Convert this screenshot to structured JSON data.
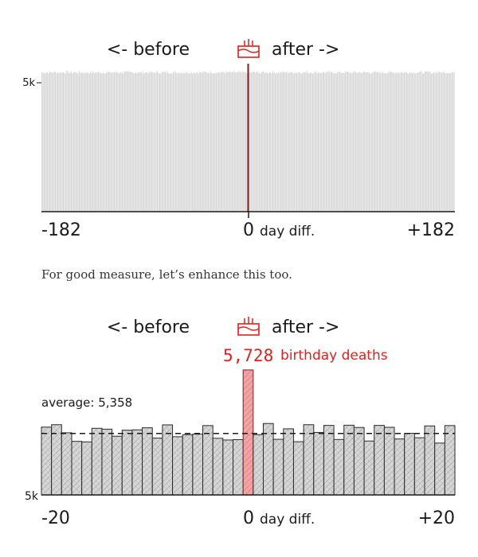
{
  "chart1": {
    "title": {
      "left": "<- before",
      "right": "after ->"
    },
    "tick_labels": {
      "start": "-182",
      "center": "0",
      "center_suffix": "day diff.",
      "end": "+182",
      "y": "5k"
    }
  },
  "prose": "For good measure, let’s enhance this too.",
  "chart2": {
    "title": {
      "left": "<- before",
      "right": "after ->"
    },
    "annotation_value": "5,728",
    "annotation_text": "birthday deaths",
    "average_label": "average: 5,358",
    "tick_labels": {
      "start": "-20",
      "center": "0",
      "center_suffix": "day diff.",
      "end": "+20",
      "y": "5k"
    }
  },
  "colors": {
    "bar": "#d6d6d6",
    "highlight": "#f2a3a3",
    "highlight_line": "#8b1a1a",
    "annotation": "#e0201d",
    "axis": "#1a1a1a"
  },
  "chart_data": [
    {
      "type": "bar",
      "x_range": [
        -182,
        182
      ],
      "ylim": [
        0,
        5100
      ],
      "values_note_free": true,
      "highlight_x": 0,
      "values": []
    },
    {
      "type": "bar",
      "x": [
        -20,
        -19,
        -18,
        -17,
        -16,
        -15,
        -14,
        -13,
        -12,
        -11,
        -10,
        -9,
        -8,
        -7,
        -6,
        -5,
        -4,
        -3,
        -2,
        -1,
        0,
        1,
        2,
        3,
        4,
        5,
        6,
        7,
        8,
        9,
        10,
        11,
        12,
        13,
        14,
        15,
        16,
        17,
        18,
        19,
        20
      ],
      "values": [
        5395,
        5409,
        5362,
        5312,
        5309,
        5388,
        5383,
        5342,
        5377,
        5379,
        5391,
        5331,
        5408,
        5339,
        5351,
        5354,
        5404,
        5330,
        5320,
        5322,
        5728,
        5351,
        5416,
        5324,
        5385,
        5310,
        5409,
        5364,
        5405,
        5323,
        5406,
        5393,
        5314,
        5405,
        5394,
        5326,
        5359,
        5333,
        5402,
        5302,
        5404
      ],
      "ylim": [
        5000,
        5760
      ],
      "average": 5358,
      "highlight_x": 0
    }
  ]
}
